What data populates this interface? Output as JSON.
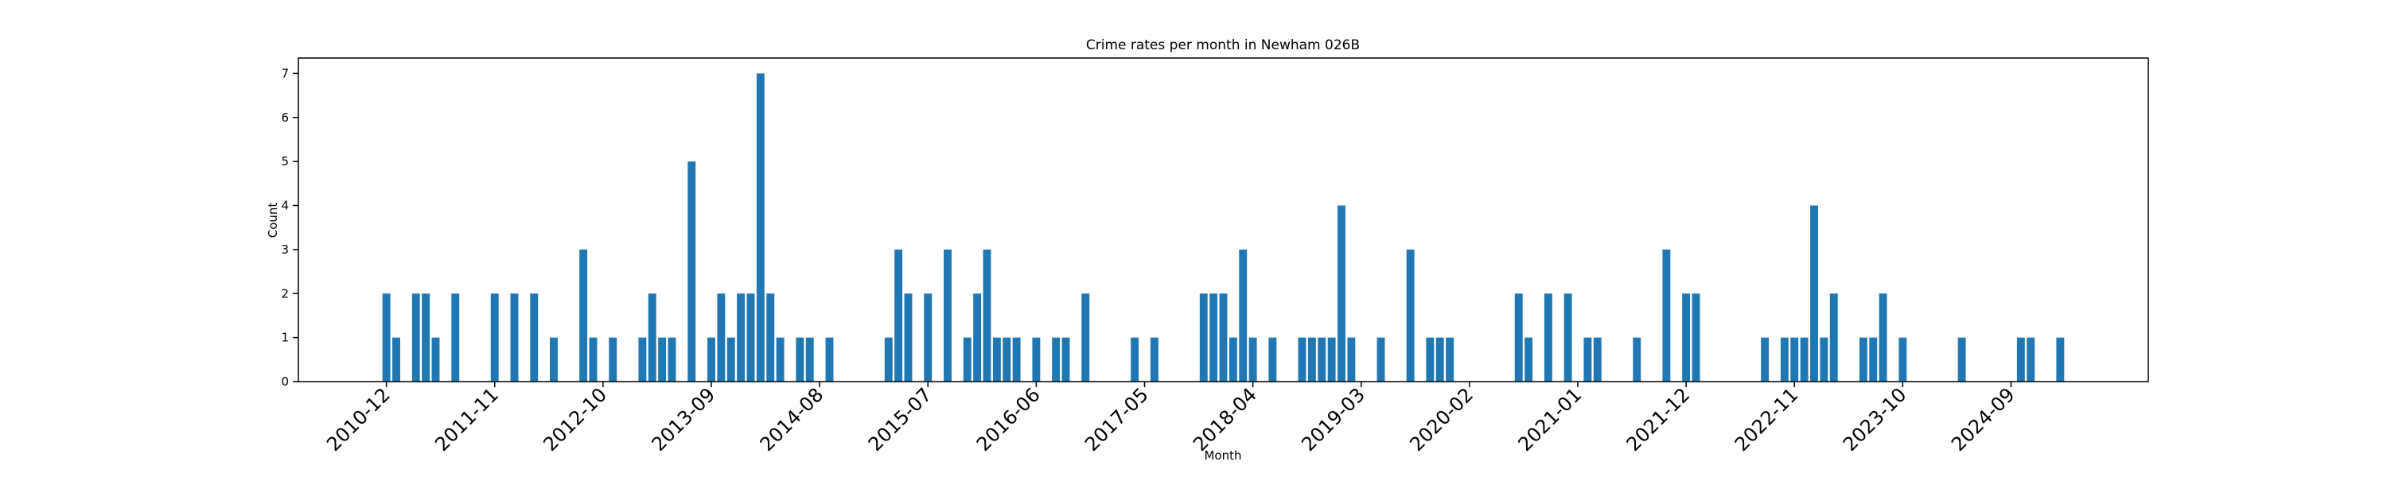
{
  "chart_data": {
    "type": "bar",
    "title": "Crime rates per month in Newham 026B",
    "xlabel": "Month",
    "ylabel": "Count",
    "color": "#1f77b4",
    "categories": [
      "2010-12",
      null,
      null,
      null,
      null,
      null,
      null,
      null,
      null,
      null,
      null,
      "2011-11",
      null,
      null,
      null,
      null,
      null,
      null,
      null,
      null,
      null,
      null,
      "2012-10",
      null,
      null,
      null,
      null,
      null,
      null,
      null,
      null,
      null,
      null,
      "2013-09",
      null,
      null,
      null,
      null,
      null,
      null,
      null,
      null,
      null,
      null,
      "2014-08",
      null,
      null,
      null,
      null,
      null,
      null,
      null,
      null,
      null,
      null,
      "2015-07",
      null,
      null,
      null,
      null,
      null,
      null,
      null,
      null,
      null,
      null,
      "2016-06",
      null,
      null,
      null,
      null,
      null,
      null,
      null,
      null,
      null,
      null,
      "2017-05",
      null,
      null,
      null,
      null,
      null,
      null,
      null,
      null,
      null,
      null,
      "2018-04",
      null,
      null,
      null,
      null,
      null,
      null,
      null,
      null,
      null,
      null,
      "2019-03",
      null,
      null,
      null,
      null,
      null,
      null,
      null,
      null,
      null,
      null,
      "2020-02",
      null,
      null,
      null,
      null,
      null,
      null,
      null,
      null,
      null,
      null,
      "2021-01",
      null,
      null,
      null,
      null,
      null,
      null,
      null,
      null,
      null,
      null,
      "2021-12",
      null,
      null,
      null,
      null,
      null,
      null,
      null,
      null,
      null,
      null,
      "2022-11",
      null,
      null,
      null,
      null,
      null,
      null,
      null,
      null,
      null,
      null,
      "2023-10",
      null,
      null,
      null,
      null,
      null,
      null,
      null,
      null,
      null,
      null,
      "2024-09",
      null,
      null,
      null,
      null,
      null
    ],
    "values": [
      2,
      1,
      0,
      2,
      2,
      1,
      0,
      2,
      0,
      0,
      0,
      2,
      0,
      2,
      0,
      2,
      0,
      1,
      0,
      0,
      3,
      1,
      0,
      1,
      0,
      0,
      1,
      2,
      1,
      1,
      0,
      5,
      0,
      1,
      2,
      1,
      2,
      2,
      7,
      2,
      1,
      0,
      1,
      1,
      0,
      1,
      0,
      0,
      0,
      0,
      0,
      1,
      3,
      2,
      0,
      2,
      0,
      3,
      0,
      1,
      2,
      3,
      1,
      1,
      1,
      0,
      1,
      0,
      1,
      1,
      0,
      2,
      0,
      0,
      0,
      0,
      1,
      0,
      1,
      0,
      0,
      0,
      0,
      2,
      2,
      2,
      1,
      3,
      1,
      0,
      1,
      0,
      0,
      1,
      1,
      1,
      1,
      4,
      1,
      0,
      0,
      1,
      0,
      0,
      3,
      0,
      1,
      1,
      1,
      0,
      0,
      0,
      0,
      0,
      0,
      2,
      1,
      0,
      2,
      0,
      2,
      0,
      1,
      1,
      0,
      0,
      0,
      1,
      0,
      0,
      3,
      0,
      2,
      2,
      0,
      0,
      0,
      0,
      0,
      0,
      1,
      0,
      1,
      1,
      1,
      4,
      1,
      2,
      0,
      0,
      1,
      1,
      2,
      0,
      1,
      0,
      0,
      0,
      0,
      0,
      1,
      0,
      0,
      0,
      0,
      0,
      1,
      1,
      0,
      0,
      1
    ],
    "ylim": [
      0,
      7.35
    ],
    "yticks": [
      0,
      1,
      2,
      3,
      4,
      5,
      6,
      7
    ]
  }
}
